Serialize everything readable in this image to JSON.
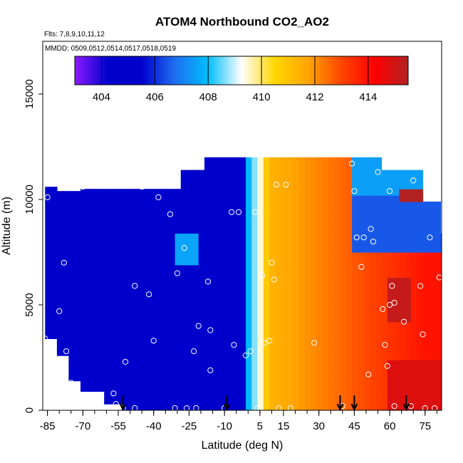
{
  "chart_data": {
    "type": "heatmap",
    "title": "ATOM4 Northbound CO2_AO2",
    "subtitle_flights": "Flts: 7,8,9,10,11,12",
    "subtitle_dates": "MMDD: 0509,0512,0514,0517,0518,0519",
    "xlabel": "Latitude (deg N)",
    "ylabel": "Altitude (m)",
    "xlim": [
      -87,
      82
    ],
    "ylim": [
      0,
      17500
    ],
    "x_ticks": [
      -85,
      -70,
      -55,
      -40,
      -25,
      -10,
      5,
      15,
      30,
      45,
      60,
      75
    ],
    "y_ticks": [
      0,
      5000,
      10000,
      15000
    ],
    "colorbar": {
      "min": 403,
      "max": 415.5,
      "ticks": [
        404,
        406,
        408,
        410,
        412,
        414
      ],
      "colors": [
        "#8c1aff",
        "#0000cd",
        "#0000cd",
        "#1e6ef0",
        "#00bfff",
        "#ffffff",
        "#ffd700",
        "#ffa500",
        "#ff4500",
        "#ff0000",
        "#b22222"
      ]
    },
    "surface_arrows_latitude": [
      -53,
      -9,
      39,
      45,
      67
    ],
    "sample_points": [
      [
        -85,
        10100
      ],
      [
        -80,
        4700
      ],
      [
        -78,
        7000
      ],
      [
        -77,
        2800
      ],
      [
        -75,
        1300
      ],
      [
        -86,
        3400
      ],
      [
        -70,
        10600
      ],
      [
        -57,
        800
      ],
      [
        -56,
        300
      ],
      [
        -53,
        100
      ],
      [
        -48,
        100
      ],
      [
        -52,
        2300
      ],
      [
        -48,
        5900
      ],
      [
        -45,
        10600
      ],
      [
        -42,
        5500
      ],
      [
        -40,
        3300
      ],
      [
        -38,
        10100
      ],
      [
        -35,
        11000
      ],
      [
        -33,
        9300
      ],
      [
        -31,
        100
      ],
      [
        -30,
        6500
      ],
      [
        -27,
        7700
      ],
      [
        -26,
        100
      ],
      [
        -23,
        2800
      ],
      [
        -22,
        100
      ],
      [
        -21,
        4000
      ],
      [
        -17,
        6100
      ],
      [
        -16,
        3800
      ],
      [
        -16,
        1900
      ],
      [
        -10,
        100
      ],
      [
        -7,
        9400
      ],
      [
        -6,
        3100
      ],
      [
        -4,
        9400
      ],
      [
        -1,
        2600
      ],
      [
        1,
        2800
      ],
      [
        3,
        9400
      ],
      [
        4,
        100
      ],
      [
        6,
        6400
      ],
      [
        7,
        3200
      ],
      [
        9,
        3300
      ],
      [
        10,
        7000
      ],
      [
        11,
        6200
      ],
      [
        12,
        10700
      ],
      [
        13,
        100
      ],
      [
        16,
        10700
      ],
      [
        18,
        100
      ],
      [
        28,
        3200
      ],
      [
        40,
        200
      ],
      [
        44,
        11700
      ],
      [
        45,
        10400
      ],
      [
        46,
        8200
      ],
      [
        48,
        6800
      ],
      [
        49,
        8200
      ],
      [
        51,
        1700
      ],
      [
        52,
        8600
      ],
      [
        53,
        8000
      ],
      [
        55,
        11300
      ],
      [
        57,
        4800
      ],
      [
        58,
        3100
      ],
      [
        59,
        2100
      ],
      [
        60,
        5000
      ],
      [
        60,
        10400
      ],
      [
        61,
        5900
      ],
      [
        62,
        5100
      ],
      [
        62,
        200
      ],
      [
        66,
        4200
      ],
      [
        69,
        200
      ],
      [
        70,
        10900
      ],
      [
        73,
        5900
      ],
      [
        74,
        3600
      ],
      [
        75,
        100
      ],
      [
        77,
        8200
      ],
      [
        79,
        100
      ],
      [
        81,
        6300
      ]
    ]
  }
}
